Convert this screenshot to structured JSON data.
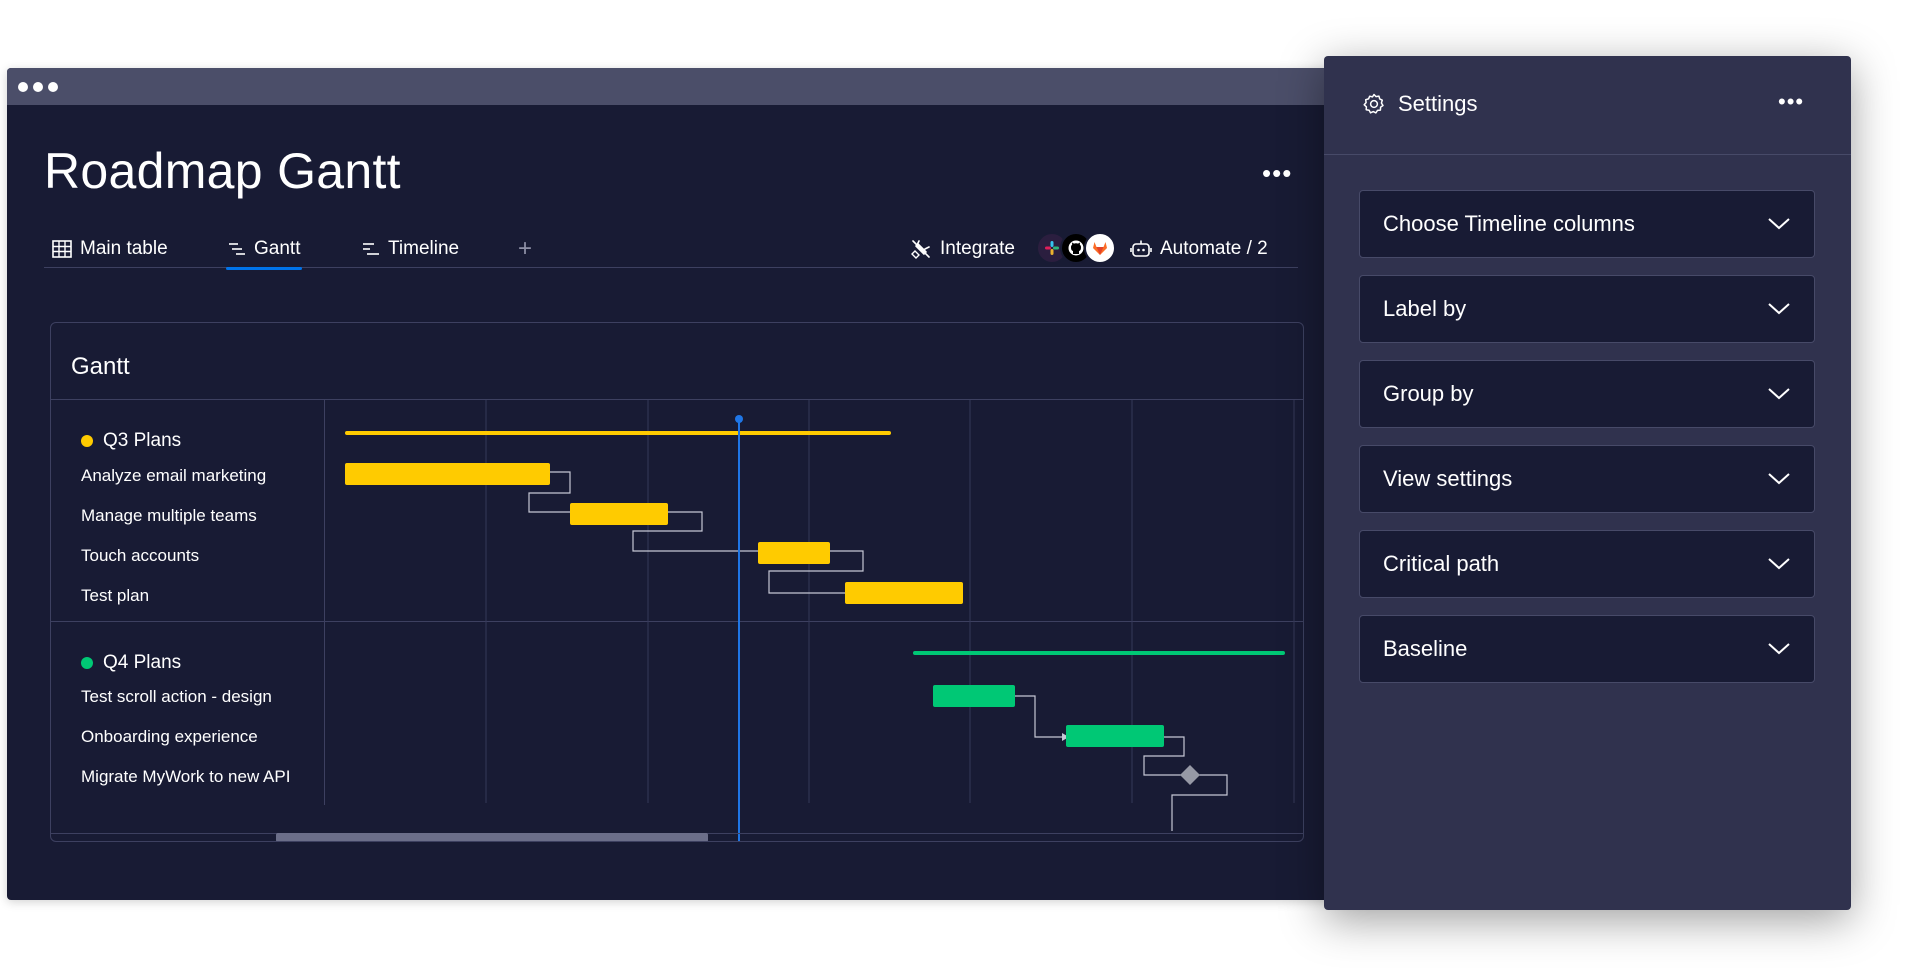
{
  "board": {
    "title": "Roadmap Gantt",
    "more_label": "•••",
    "tabs": [
      {
        "label": "Main table",
        "icon": "table-icon"
      },
      {
        "label": "Gantt",
        "icon": "gantt-icon",
        "active": true
      },
      {
        "label": "Timeline",
        "icon": "timeline-icon"
      }
    ],
    "add_tab_label": "+",
    "integrate_label": "Integrate",
    "integration_icons": [
      "slack-icon",
      "github-icon",
      "gitlab-icon"
    ],
    "automate_label": "Automate / 2"
  },
  "gantt": {
    "title": "Gantt",
    "groups": [
      {
        "name": "Q3 Plans",
        "color": "#ffcb00",
        "items": [
          "Analyze email marketing",
          "Manage multiple teams",
          "Touch accounts",
          "Test plan"
        ]
      },
      {
        "name": "Q4 Plans",
        "color": "#00c875",
        "items": [
          "Test scroll action - design",
          "Onboarding experience",
          "Migrate MyWork to new API"
        ]
      }
    ]
  },
  "settings": {
    "title": "Settings",
    "more_label": "•••",
    "dropdowns": [
      "Choose Timeline columns",
      "Label by",
      "Group by",
      "View settings",
      "Critical path",
      "Baseline"
    ]
  },
  "colors": {
    "background": "#181b34",
    "panel": "#30324e",
    "accent": "#0073ea",
    "q3": "#ffcb00",
    "q4": "#00c875"
  }
}
